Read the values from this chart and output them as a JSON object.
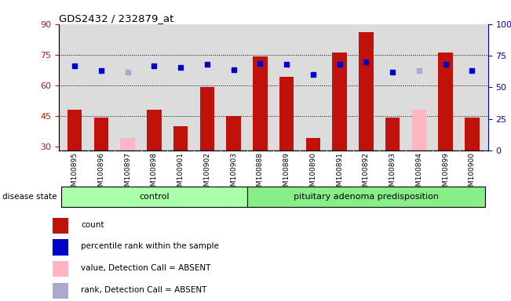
{
  "title": "GDS2432 / 232879_at",
  "samples": [
    "GSM100895",
    "GSM100896",
    "GSM100897",
    "GSM100898",
    "GSM100901",
    "GSM100902",
    "GSM100903",
    "GSM100888",
    "GSM100889",
    "GSM100890",
    "GSM100891",
    "GSM100892",
    "GSM100893",
    "GSM100894",
    "GSM100899",
    "GSM100900"
  ],
  "n_control": 7,
  "n_pituitary": 9,
  "count_values": [
    48,
    44,
    null,
    48,
    40,
    59,
    45,
    74,
    64,
    34,
    76,
    86,
    44,
    null,
    76,
    44
  ],
  "count_absent": [
    null,
    null,
    34,
    null,
    null,
    null,
    null,
    null,
    null,
    null,
    null,
    null,
    null,
    48,
    null,
    null
  ],
  "rank_values": [
    67,
    63,
    null,
    67,
    66,
    68,
    64,
    69,
    68,
    60,
    68,
    70,
    62,
    null,
    68,
    63
  ],
  "rank_absent": [
    null,
    null,
    62,
    null,
    null,
    null,
    null,
    null,
    null,
    null,
    null,
    null,
    null,
    63,
    null,
    null
  ],
  "ylim_left": [
    28,
    90
  ],
  "ylim_right": [
    0,
    100
  ],
  "yticks_left": [
    30,
    45,
    60,
    75,
    90
  ],
  "yticks_right": [
    0,
    25,
    50,
    75,
    100
  ],
  "bar_color": "#C0110A",
  "bar_absent_color": "#FFB6C1",
  "rank_color": "#0000CC",
  "rank_absent_color": "#AAAACC",
  "left_axis_color": "#C0110A",
  "right_axis_color": "#0000CC",
  "group_control_color": "#AAFFAA",
  "group_pituitary_color": "#88EE88",
  "group_label_control": "control",
  "group_label_pituitary": "pituitary adenoma predisposition",
  "disease_state_label": "disease state",
  "bg_color": "#DCDCDC",
  "legend_items": [
    {
      "label": "count",
      "color": "#C0110A"
    },
    {
      "label": "percentile rank within the sample",
      "color": "#0000CC"
    },
    {
      "label": "value, Detection Call = ABSENT",
      "color": "#FFB6C1"
    },
    {
      "label": "rank, Detection Call = ABSENT",
      "color": "#AAAACC"
    }
  ]
}
